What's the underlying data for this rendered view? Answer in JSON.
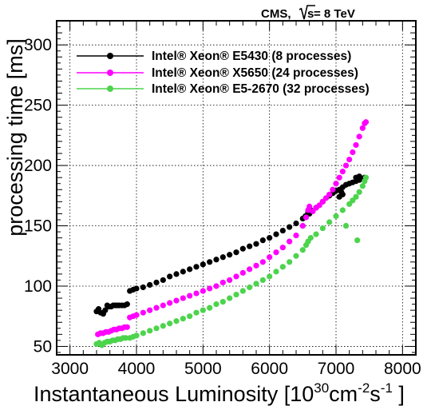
{
  "chart_data": {
    "type": "scatter",
    "header": {
      "experiment": "CMS,",
      "energy_prefix": "s",
      "energy_value": " = 8 TeV"
    },
    "xlabel": {
      "main": "Instantaneous Luminosity [10",
      "exp1": "30",
      "mid1": "cm",
      "exp2": "-2",
      "mid2": "s",
      "exp3": "-1",
      "end": " ]"
    },
    "ylabel": "processing time [ms]",
    "xlim": [
      2800,
      8200
    ],
    "ylim": [
      43,
      320
    ],
    "xticks": [
      3000,
      4000,
      5000,
      6000,
      7000,
      8000
    ],
    "yticks": [
      50,
      100,
      150,
      200,
      250,
      300
    ],
    "grid": true,
    "legend_position": "top-left",
    "series": [
      {
        "name": "Intel® Xeon® E5430 (8 processes)",
        "color": "#000000",
        "points": [
          [
            3400,
            79
          ],
          [
            3430,
            81
          ],
          [
            3460,
            78
          ],
          [
            3500,
            77
          ],
          [
            3530,
            80
          ],
          [
            3560,
            84
          ],
          [
            3590,
            83
          ],
          [
            3620,
            83
          ],
          [
            3650,
            84
          ],
          [
            3680,
            84
          ],
          [
            3710,
            84
          ],
          [
            3740,
            84
          ],
          [
            3780,
            84
          ],
          [
            3820,
            84
          ],
          [
            3860,
            85
          ],
          [
            3900,
            96
          ],
          [
            3950,
            97
          ],
          [
            4000,
            98
          ],
          [
            4100,
            99
          ],
          [
            4200,
            101
          ],
          [
            4300,
            103
          ],
          [
            4400,
            105
          ],
          [
            4500,
            108
          ],
          [
            4600,
            110
          ],
          [
            4700,
            112
          ],
          [
            4800,
            114
          ],
          [
            4900,
            116
          ],
          [
            5000,
            118
          ],
          [
            5100,
            120
          ],
          [
            5200,
            122
          ],
          [
            5300,
            124
          ],
          [
            5400,
            126
          ],
          [
            5500,
            128
          ],
          [
            5600,
            131
          ],
          [
            5700,
            133
          ],
          [
            5800,
            135
          ],
          [
            5900,
            138
          ],
          [
            6000,
            140
          ],
          [
            6100,
            143
          ],
          [
            6200,
            146
          ],
          [
            6300,
            149
          ],
          [
            6400,
            152
          ],
          [
            6500,
            156
          ],
          [
            6600,
            160
          ],
          [
            6700,
            165
          ],
          [
            6800,
            170
          ],
          [
            6900,
            175
          ],
          [
            6950,
            177
          ],
          [
            7000,
            179
          ],
          [
            7050,
            180
          ],
          [
            7100,
            182
          ],
          [
            7150,
            184
          ],
          [
            7200,
            185
          ],
          [
            7250,
            186
          ],
          [
            7300,
            187
          ],
          [
            7350,
            188
          ],
          [
            7400,
            189
          ],
          [
            7430,
            190
          ],
          [
            7050,
            174
          ],
          [
            7080,
            178
          ],
          [
            7100,
            176
          ],
          [
            6620,
            163
          ],
          [
            6580,
            161
          ],
          [
            6540,
            158
          ],
          [
            7300,
            190
          ],
          [
            7350,
            191
          ]
        ]
      },
      {
        "name": "Intel® Xeon® X5650 (24 processes)",
        "color": "#ff00ff",
        "points": [
          [
            3420,
            60
          ],
          [
            3460,
            61
          ],
          [
            3500,
            61
          ],
          [
            3540,
            62
          ],
          [
            3580,
            62
          ],
          [
            3620,
            63
          ],
          [
            3660,
            64
          ],
          [
            3700,
            64
          ],
          [
            3740,
            65
          ],
          [
            3780,
            65
          ],
          [
            3820,
            66
          ],
          [
            3860,
            66
          ],
          [
            3900,
            74
          ],
          [
            3950,
            75
          ],
          [
            4000,
            76
          ],
          [
            4100,
            78
          ],
          [
            4200,
            80
          ],
          [
            4300,
            82
          ],
          [
            4400,
            84
          ],
          [
            4500,
            86
          ],
          [
            4600,
            88
          ],
          [
            4700,
            90
          ],
          [
            4800,
            92
          ],
          [
            4900,
            94
          ],
          [
            5000,
            96
          ],
          [
            5100,
            98
          ],
          [
            5200,
            100
          ],
          [
            5300,
            103
          ],
          [
            5400,
            105
          ],
          [
            5500,
            108
          ],
          [
            5600,
            111
          ],
          [
            5700,
            114
          ],
          [
            5800,
            117
          ],
          [
            5900,
            120
          ],
          [
            6000,
            124
          ],
          [
            6100,
            128
          ],
          [
            6200,
            132
          ],
          [
            6300,
            137
          ],
          [
            6400,
            142
          ],
          [
            6500,
            150
          ],
          [
            6550,
            157
          ],
          [
            6580,
            163
          ],
          [
            6600,
            166
          ],
          [
            6650,
            162
          ],
          [
            6700,
            165
          ],
          [
            6750,
            167
          ],
          [
            6800,
            170
          ],
          [
            6850,
            173
          ],
          [
            6900,
            176
          ],
          [
            6950,
            180
          ],
          [
            7000,
            185
          ],
          [
            7050,
            190
          ],
          [
            7100,
            195
          ],
          [
            7150,
            200
          ],
          [
            7200,
            205
          ],
          [
            7250,
            211
          ],
          [
            7300,
            217
          ],
          [
            7350,
            224
          ],
          [
            7400,
            231
          ],
          [
            7430,
            235
          ],
          [
            7450,
            236
          ]
        ]
      },
      {
        "name": "Intel® Xeon® E5-2670 (32 processes)",
        "color": "#4cd44c",
        "points": [
          [
            3400,
            52
          ],
          [
            3440,
            53
          ],
          [
            3480,
            51
          ],
          [
            3520,
            53
          ],
          [
            3560,
            54
          ],
          [
            3600,
            54
          ],
          [
            3640,
            55
          ],
          [
            3680,
            55
          ],
          [
            3720,
            56
          ],
          [
            3760,
            56
          ],
          [
            3800,
            57
          ],
          [
            3840,
            57
          ],
          [
            3900,
            57
          ],
          [
            3950,
            58
          ],
          [
            4000,
            59
          ],
          [
            4100,
            61
          ],
          [
            4200,
            63
          ],
          [
            4300,
            65
          ],
          [
            4400,
            67
          ],
          [
            4500,
            69
          ],
          [
            4600,
            71
          ],
          [
            4700,
            73
          ],
          [
            4800,
            75
          ],
          [
            4900,
            78
          ],
          [
            5000,
            80
          ],
          [
            5100,
            82
          ],
          [
            5200,
            85
          ],
          [
            5300,
            87
          ],
          [
            5400,
            90
          ],
          [
            5500,
            93
          ],
          [
            5600,
            96
          ],
          [
            5700,
            99
          ],
          [
            5800,
            102
          ],
          [
            5900,
            105
          ],
          [
            6000,
            108
          ],
          [
            6100,
            112
          ],
          [
            6200,
            116
          ],
          [
            6300,
            120
          ],
          [
            6400,
            125
          ],
          [
            6500,
            130
          ],
          [
            6550,
            134
          ],
          [
            6580,
            137
          ],
          [
            6620,
            140
          ],
          [
            6700,
            143
          ],
          [
            6800,
            148
          ],
          [
            6900,
            153
          ],
          [
            7000,
            158
          ],
          [
            7100,
            163
          ],
          [
            7200,
            168
          ],
          [
            7250,
            171
          ],
          [
            7300,
            174
          ],
          [
            7350,
            178
          ],
          [
            7400,
            183
          ],
          [
            7430,
            187
          ],
          [
            7450,
            190
          ],
          [
            7320,
            138
          ],
          [
            7150,
            150
          ]
        ]
      }
    ]
  }
}
